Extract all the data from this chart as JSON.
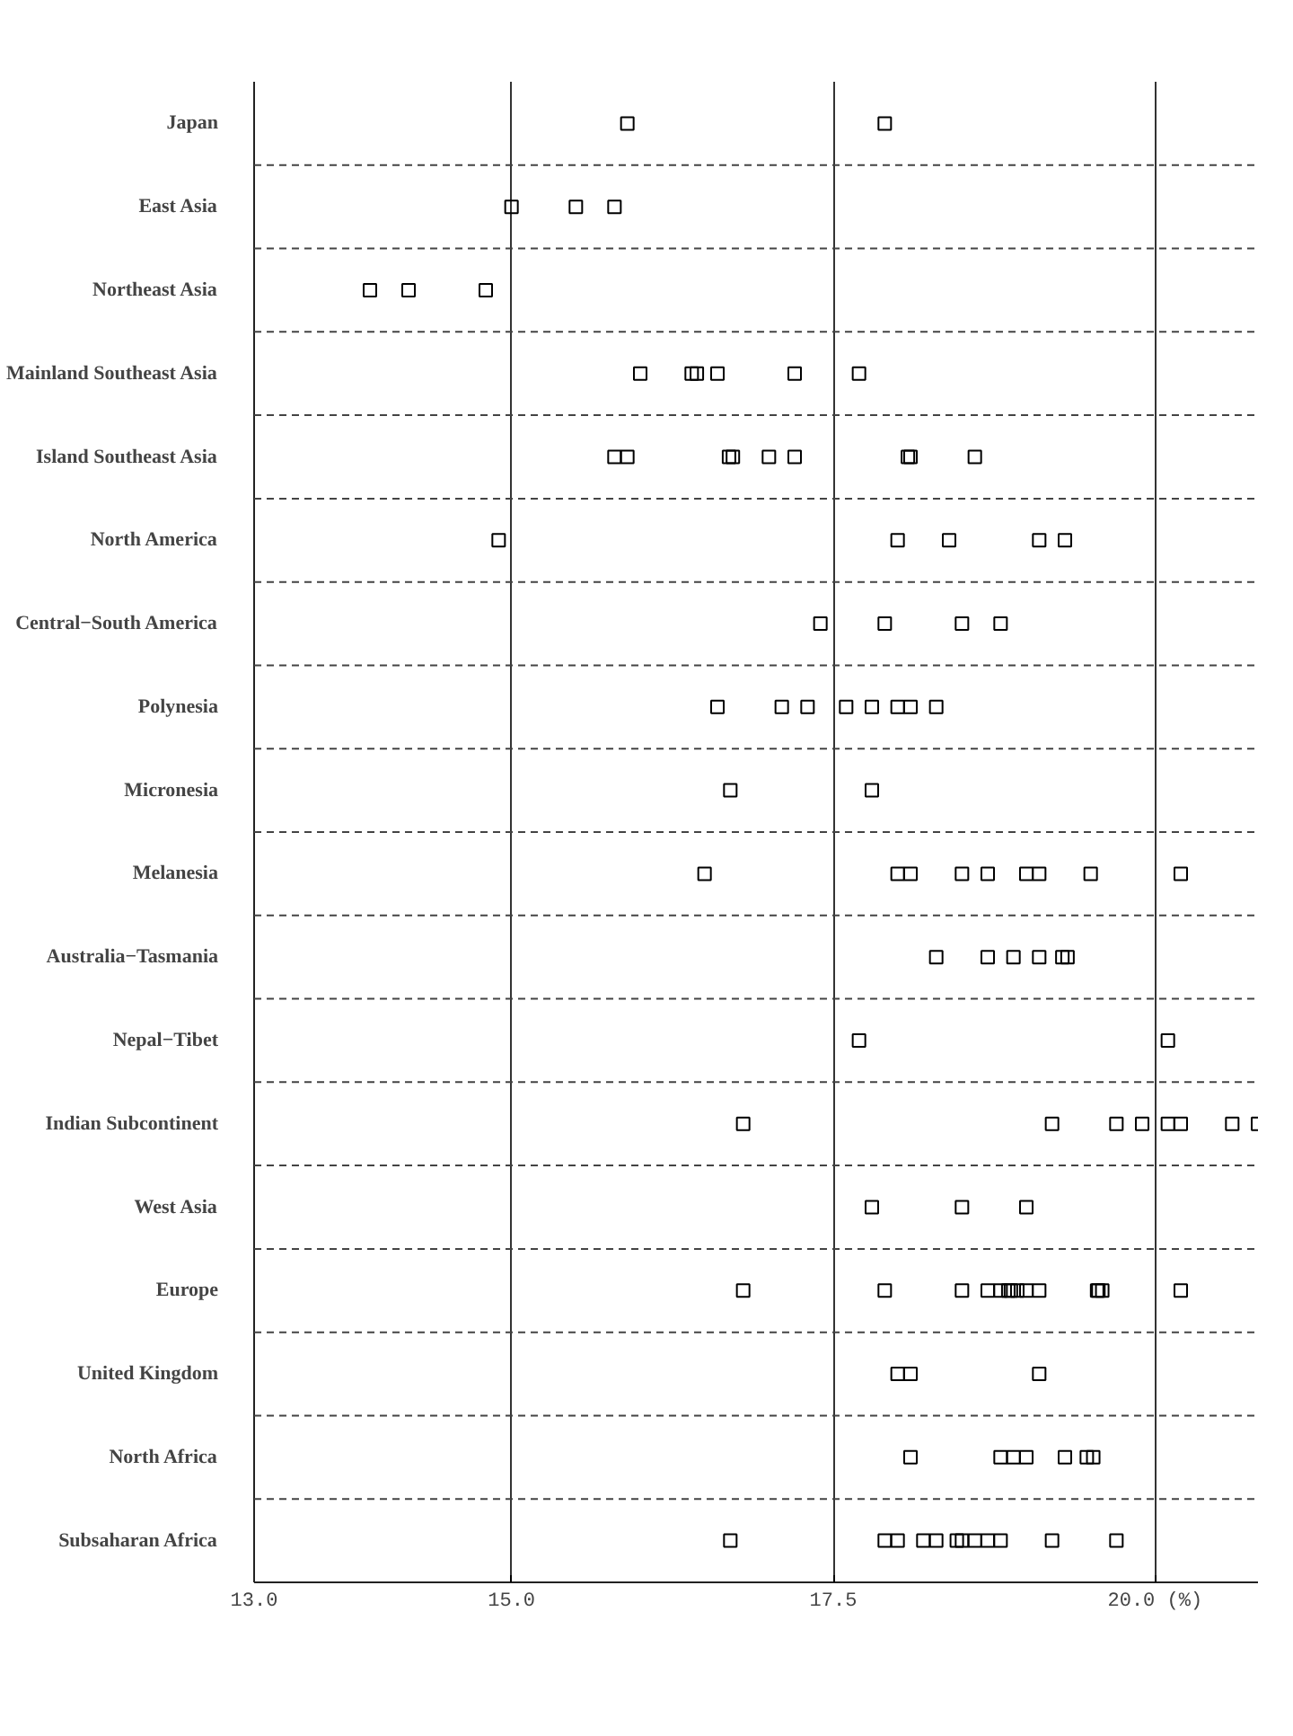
{
  "chart_data": {
    "type": "scatter",
    "orientation": "horizontal",
    "marker": "square",
    "grid": "x",
    "xlim": [
      13.0,
      20.8
    ],
    "xticks": [
      {
        "value": 13.0,
        "label": "13.0"
      },
      {
        "value": 15.0,
        "label": "15.0"
      },
      {
        "value": 17.5,
        "label": "17.5"
      },
      {
        "value": 20.0,
        "label": "20.0 (%)"
      }
    ],
    "categories": [
      "Japan",
      "East Asia",
      "Northeast Asia",
      "Mainland Southeast Asia",
      "Island Southeast Asia",
      "North America",
      "Central−South America",
      "Polynesia",
      "Micronesia",
      "Melanesia",
      "Australia−Tasmania",
      "Nepal−Tibet",
      "Indian Subcontinent",
      "West Asia",
      "Europe",
      "United Kingdom",
      "North Africa",
      "Subsaharan Africa"
    ],
    "series": [
      {
        "color": "#000000",
        "values": [
          17.9,
          15.8,
          14.2,
          16.44,
          18.08,
          14.9,
          17.4,
          16.6,
          16.7,
          18.1,
          18.9,
          20.1,
          20.2,
          19.0,
          18.86,
          18.1,
          18.1,
          19.2
        ]
      },
      {
        "color": "#000000",
        "values": [
          15.9,
          15.0,
          13.9,
          16.6,
          17.2,
          19.3,
          18.8,
          18.3,
          17.8,
          16.5,
          19.32,
          17.7,
          16.8,
          17.8,
          19.1,
          18.0,
          19.3,
          18.7
        ]
      },
      {
        "color": "#000000",
        "values": [
          null,
          15.5,
          14.8,
          16.0,
          17.0,
          18.4,
          18.5,
          17.3,
          null,
          19.5,
          19.28,
          null,
          19.9,
          18.5,
          19.55,
          19.1,
          19.52,
          18.2
        ]
      },
      {
        "color": "#000000",
        "values": [
          null,
          null,
          null,
          17.7,
          16.69,
          18.0,
          17.9,
          17.6,
          null,
          18.0,
          19.1,
          null,
          20.6,
          null,
          19.59,
          null,
          18.9,
          18.46
        ]
      },
      {
        "color": "#000000",
        "values": [
          null,
          null,
          null,
          17.2,
          16.72,
          19.1,
          null,
          17.8,
          null,
          19.1,
          18.7,
          null,
          19.2,
          null,
          19.56,
          null,
          19.47,
          18.5
        ]
      },
      {
        "color": "#000000",
        "values": [
          null,
          null,
          null,
          16.4,
          18.1,
          null,
          null,
          18.1,
          null,
          20.2,
          18.3,
          null,
          19.7,
          null,
          19.0,
          null,
          19.0,
          19.7
        ]
      },
      {
        "color": "#000000",
        "values": [
          null,
          null,
          null,
          null,
          18.6,
          null,
          null,
          17.1,
          null,
          18.5,
          null,
          null,
          20.8,
          null,
          18.88,
          null,
          18.8,
          18.0
        ]
      },
      {
        "color": "#000000",
        "values": [
          null,
          null,
          null,
          null,
          15.8,
          null,
          null,
          18.0,
          null,
          19.0,
          null,
          null,
          20.1,
          null,
          18.5,
          null,
          null,
          18.3
        ]
      },
      {
        "color": "#000000",
        "values": [
          null,
          null,
          null,
          null,
          15.9,
          null,
          null,
          null,
          null,
          18.7,
          null,
          null,
          null,
          null,
          18.8,
          null,
          null,
          18.8
        ]
      },
      {
        "color": "#000000",
        "values": [
          null,
          null,
          null,
          null,
          null,
          null,
          null,
          null,
          null,
          null,
          null,
          null,
          null,
          null,
          16.8,
          null,
          null,
          17.9
        ]
      },
      {
        "color": "#000000",
        "values": [
          null,
          null,
          null,
          null,
          null,
          null,
          null,
          null,
          null,
          null,
          null,
          null,
          null,
          null,
          18.7,
          null,
          null,
          18.6
        ]
      },
      {
        "color": "#000000",
        "values": [
          null,
          null,
          null,
          null,
          null,
          null,
          null,
          null,
          null,
          null,
          null,
          null,
          null,
          null,
          18.93,
          null,
          null,
          16.7
        ]
      },
      {
        "color": "#000000",
        "values": [
          null,
          null,
          null,
          null,
          null,
          null,
          null,
          null,
          null,
          null,
          null,
          null,
          null,
          null,
          17.9,
          null,
          null,
          null
        ]
      },
      {
        "color": "#000000",
        "values": [
          null,
          null,
          null,
          null,
          null,
          null,
          null,
          null,
          null,
          null,
          null,
          null,
          null,
          null,
          20.2,
          null,
          null,
          null
        ]
      }
    ]
  }
}
